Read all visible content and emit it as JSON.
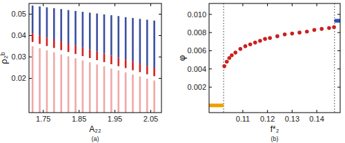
{
  "chart_data": [
    {
      "type": "range_bar",
      "caption": "(a)",
      "x_label": "A₂₂",
      "y_label": "ρ₂ᵇ",
      "x": [
        1.72,
        1.74,
        1.76,
        1.78,
        1.8,
        1.82,
        1.84,
        1.86,
        1.88,
        1.9,
        1.92,
        1.94,
        1.96,
        1.98,
        2.0,
        2.02,
        2.04,
        2.06
      ],
      "xlim": [
        1.71,
        2.08
      ],
      "xticks": [
        1.75,
        1.85,
        1.95,
        2.05
      ],
      "ylim": [
        0.004,
        0.055
      ],
      "yticks": [
        0.02,
        0.03,
        0.04,
        0.05
      ],
      "series": [
        {
          "color": "#3b4fa0",
          "low": [
            0.041,
            0.0401,
            0.0391,
            0.0382,
            0.0372,
            0.0363,
            0.0354,
            0.0344,
            0.0335,
            0.0325,
            0.0316,
            0.0306,
            0.0297,
            0.0288,
            0.0278,
            0.0269,
            0.0259,
            0.025
          ],
          "high": [
            0.054,
            0.0536,
            0.0532,
            0.0528,
            0.0524,
            0.0519,
            0.0515,
            0.0511,
            0.0507,
            0.0503,
            0.0499,
            0.0495,
            0.0491,
            0.0486,
            0.0482,
            0.0478,
            0.0474,
            0.047
          ]
        },
        {
          "color": "#d42020",
          "low": [
            0.037,
            0.0361,
            0.0351,
            0.0342,
            0.0332,
            0.0323,
            0.0314,
            0.0304,
            0.0295,
            0.0285,
            0.0276,
            0.0266,
            0.0257,
            0.0248,
            0.0238,
            0.0229,
            0.0219,
            0.021
          ],
          "high": [
            0.041,
            0.0401,
            0.0391,
            0.0382,
            0.0372,
            0.0363,
            0.0354,
            0.0344,
            0.0335,
            0.0325,
            0.0316,
            0.0306,
            0.0297,
            0.0288,
            0.0278,
            0.0269,
            0.0259,
            0.025
          ]
        },
        {
          "color": "#f0a8a8",
          "low": [
            0.004,
            0.004,
            0.004,
            0.004,
            0.004,
            0.004,
            0.004,
            0.004,
            0.004,
            0.004,
            0.004,
            0.004,
            0.004,
            0.004,
            0.004,
            0.004,
            0.004,
            0.004
          ],
          "high": [
            0.035,
            0.0341,
            0.0331,
            0.0322,
            0.0312,
            0.0303,
            0.0294,
            0.0284,
            0.0275,
            0.0265,
            0.0256,
            0.0246,
            0.0237,
            0.0228,
            0.0218,
            0.0209,
            0.0199,
            0.019
          ]
        }
      ]
    },
    {
      "type": "scatter",
      "caption": "(b)",
      "x_label": "f*₂",
      "y_label": "φ",
      "xlim": [
        0.0963,
        0.1495
      ],
      "xticks": [
        0.11,
        0.12,
        0.13,
        0.14
      ],
      "ylim": [
        -0.0008,
        0.0112
      ],
      "yticks": [
        0.002,
        0.004,
        0.006,
        0.008,
        {
          "value": 0.01,
          "label": "0.010"
        }
      ],
      "vlines": [
        0.1022,
        0.1472
      ],
      "line_style": "dotted",
      "series": [
        {
          "color": "#f0a000",
          "marker": "circle",
          "x": [
            0.0965,
            0.0975,
            0.0985,
            0.0995,
            0.1005,
            0.1015
          ],
          "values": [
            0,
            0,
            0,
            0,
            0,
            0
          ]
        },
        {
          "color": "#cc1f1f",
          "marker": "circle",
          "x": [
            0.1025,
            0.1035,
            0.1045,
            0.1055,
            0.107,
            0.109,
            0.111,
            0.113,
            0.115,
            0.117,
            0.119,
            0.121,
            0.124,
            0.127,
            0.13,
            0.133,
            0.136,
            0.139,
            0.142,
            0.145,
            0.147
          ],
          "values": [
            0.0043,
            0.0048,
            0.0052,
            0.0055,
            0.0058,
            0.0062,
            0.0065,
            0.0067,
            0.0069,
            0.0071,
            0.0073,
            0.0074,
            0.0076,
            0.0078,
            0.0079,
            0.008,
            0.0081,
            0.0083,
            0.0084,
            0.0085,
            0.0086
          ]
        },
        {
          "color": "#2e4fb8",
          "marker": "circle",
          "x": [
            0.1478,
            0.1486,
            0.1494
          ],
          "values": [
            0.0093,
            0.0093,
            0.0093
          ]
        }
      ]
    }
  ]
}
